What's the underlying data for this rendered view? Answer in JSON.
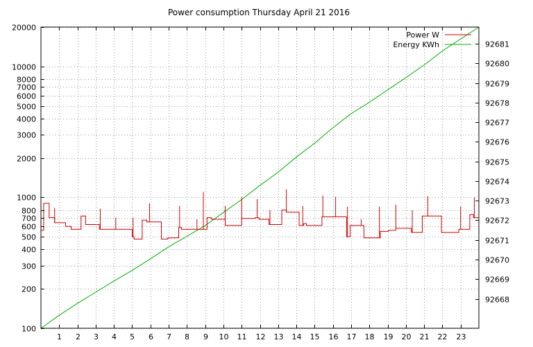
{
  "chart_data": {
    "type": "line",
    "title": "Power consumption Thursday April 21 2016",
    "xlabel": "",
    "ylabel": "",
    "x_ticks": [
      1,
      2,
      3,
      4,
      5,
      6,
      7,
      8,
      9,
      10,
      11,
      12,
      13,
      14,
      15,
      16,
      17,
      18,
      19,
      20,
      21,
      22,
      23
    ],
    "xlim": [
      0,
      24
    ],
    "y_left": {
      "scale": "log",
      "lim": [
        100,
        20000
      ],
      "ticks": [
        100,
        200,
        300,
        400,
        500,
        600,
        700,
        800,
        1000,
        2000,
        3000,
        4000,
        5000,
        6000,
        7000,
        8000,
        10000,
        20000
      ]
    },
    "y_right": {
      "scale": "linear",
      "lim": [
        92666.5,
        92681.85
      ],
      "ticks": [
        92668,
        92669,
        92670,
        92671,
        92672,
        92673,
        92674,
        92675,
        92676,
        92677,
        92678,
        92679,
        92680,
        92681
      ]
    },
    "grid": true,
    "legend_position": "top-right",
    "colors": {
      "power": "#cc0000",
      "energy": "#00aa00"
    },
    "series": [
      {
        "name": "Power W",
        "axis": "left",
        "style": "step",
        "points": [
          [
            0.0,
            560
          ],
          [
            0.15,
            560
          ],
          [
            0.15,
            900
          ],
          [
            0.45,
            900
          ],
          [
            0.45,
            700
          ],
          [
            0.75,
            700
          ],
          [
            0.75,
            640
          ],
          [
            1.35,
            640
          ],
          [
            1.35,
            600
          ],
          [
            1.65,
            600
          ],
          [
            1.65,
            570
          ],
          [
            2.2,
            570
          ],
          [
            2.2,
            720
          ],
          [
            2.45,
            720
          ],
          [
            2.45,
            620
          ],
          [
            3.2,
            620
          ],
          [
            3.2,
            570
          ],
          [
            4.0,
            570
          ],
          [
            4.0,
            570
          ],
          [
            5.0,
            570
          ],
          [
            5.0,
            500
          ],
          [
            5.1,
            500
          ],
          [
            5.1,
            480
          ],
          [
            5.55,
            480
          ],
          [
            5.55,
            670
          ],
          [
            5.8,
            670
          ],
          [
            5.8,
            650
          ],
          [
            6.6,
            650
          ],
          [
            6.6,
            480
          ],
          [
            6.95,
            480
          ],
          [
            6.95,
            490
          ],
          [
            7.55,
            490
          ],
          [
            7.55,
            590
          ],
          [
            7.7,
            590
          ],
          [
            7.7,
            570
          ],
          [
            8.6,
            570
          ],
          [
            8.6,
            570
          ],
          [
            9.1,
            570
          ],
          [
            9.1,
            700
          ],
          [
            9.35,
            700
          ],
          [
            9.35,
            680
          ],
          [
            10.1,
            680
          ],
          [
            10.1,
            610
          ],
          [
            11.0,
            610
          ],
          [
            11.0,
            690
          ],
          [
            11.75,
            690
          ],
          [
            11.75,
            700
          ],
          [
            11.95,
            700
          ],
          [
            11.95,
            680
          ],
          [
            12.5,
            680
          ],
          [
            12.5,
            620
          ],
          [
            13.2,
            620
          ],
          [
            13.2,
            800
          ],
          [
            13.45,
            800
          ],
          [
            13.45,
            770
          ],
          [
            14.15,
            770
          ],
          [
            14.15,
            610
          ],
          [
            14.4,
            610
          ],
          [
            14.4,
            630
          ],
          [
            14.55,
            630
          ],
          [
            14.55,
            610
          ],
          [
            15.4,
            610
          ],
          [
            15.4,
            710
          ],
          [
            16.15,
            710
          ],
          [
            16.15,
            710
          ],
          [
            16.75,
            710
          ],
          [
            16.75,
            500
          ],
          [
            16.95,
            500
          ],
          [
            16.95,
            610
          ],
          [
            17.7,
            610
          ],
          [
            17.7,
            490
          ],
          [
            18.6,
            490
          ],
          [
            18.6,
            550
          ],
          [
            19.05,
            550
          ],
          [
            19.05,
            560
          ],
          [
            19.45,
            560
          ],
          [
            19.45,
            580
          ],
          [
            20.3,
            580
          ],
          [
            20.3,
            540
          ],
          [
            20.9,
            540
          ],
          [
            20.9,
            720
          ],
          [
            21.95,
            720
          ],
          [
            21.95,
            540
          ],
          [
            22.9,
            540
          ],
          [
            22.9,
            570
          ],
          [
            23.5,
            570
          ],
          [
            23.5,
            740
          ],
          [
            23.7,
            740
          ],
          [
            23.7,
            700
          ],
          [
            24.0,
            700
          ]
        ],
        "spikes": [
          [
            0.75,
            830
          ],
          [
            3.25,
            820
          ],
          [
            4.1,
            700
          ],
          [
            5.05,
            700
          ],
          [
            5.95,
            900
          ],
          [
            7.6,
            860
          ],
          [
            8.55,
            680
          ],
          [
            8.9,
            1100
          ],
          [
            10.1,
            860
          ],
          [
            11.0,
            1000
          ],
          [
            11.85,
            970
          ],
          [
            12.55,
            800
          ],
          [
            13.45,
            1150
          ],
          [
            14.35,
            860
          ],
          [
            15.45,
            1030
          ],
          [
            16.15,
            1010
          ],
          [
            16.8,
            850
          ],
          [
            17.55,
            680
          ],
          [
            18.55,
            850
          ],
          [
            19.45,
            880
          ],
          [
            20.35,
            800
          ],
          [
            21.2,
            1020
          ],
          [
            23.0,
            850
          ],
          [
            23.75,
            1000
          ]
        ]
      },
      {
        "name": "Energy KWh",
        "axis": "right",
        "style": "line",
        "points": [
          [
            0,
            92666.5
          ],
          [
            1,
            92667.16
          ],
          [
            2,
            92667.77
          ],
          [
            3,
            92668.34
          ],
          [
            4,
            92668.91
          ],
          [
            5,
            92669.45
          ],
          [
            6,
            92670.04
          ],
          [
            7,
            92670.65
          ],
          [
            8,
            92671.19
          ],
          [
            9,
            92671.73
          ],
          [
            10,
            92672.4
          ],
          [
            11,
            92673.06
          ],
          [
            12,
            92673.78
          ],
          [
            13,
            92674.45
          ],
          [
            14,
            92675.23
          ],
          [
            15,
            92675.93
          ],
          [
            16,
            92676.72
          ],
          [
            17,
            92677.44
          ],
          [
            18,
            92678.02
          ],
          [
            19,
            92678.65
          ],
          [
            20,
            92679.27
          ],
          [
            21,
            92679.92
          ],
          [
            22,
            92680.63
          ],
          [
            23,
            92681.24
          ],
          [
            24,
            92681.85
          ]
        ]
      }
    ]
  }
}
